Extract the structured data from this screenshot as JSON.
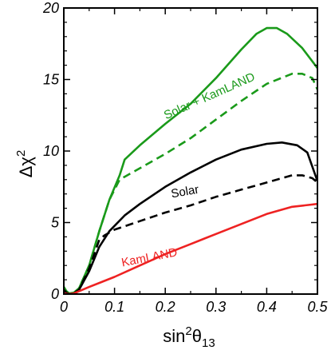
{
  "chart_data": {
    "type": "line",
    "xlabel": {
      "base": "sin",
      "sup": "2",
      "theta": "θ",
      "sub": "13"
    },
    "ylabel": {
      "base": "Δχ",
      "sup": "2"
    },
    "xlim": [
      0,
      0.5
    ],
    "ylim": [
      0,
      20
    ],
    "x_ticks": [
      "0",
      "0.1",
      "0.2",
      "0.3",
      "0.4",
      "0.5"
    ],
    "x_tick_values": [
      0,
      0.1,
      0.2,
      0.3,
      0.4,
      0.5
    ],
    "y_ticks": [
      "0",
      "5",
      "10",
      "15",
      "20"
    ],
    "y_tick_values": [
      0,
      5,
      10,
      15,
      20
    ],
    "grid": false,
    "legend": "none",
    "colors": {
      "green": "#1a9a1a",
      "black": "#000000",
      "red": "#ee2222"
    },
    "annotations": [
      {
        "text": "Solar + KamLAND",
        "color": "#1a9a1a",
        "x": 0.29,
        "y": 13.6,
        "angle": -24
      },
      {
        "text": "Solar",
        "color": "#000000",
        "x": 0.24,
        "y": 6.9,
        "angle": -10
      },
      {
        "text": "KamLAND",
        "color": "#ee2222",
        "x": 0.17,
        "y": 2.3,
        "angle": -11
      }
    ],
    "series": [
      {
        "color": "#1a9a1a",
        "dash": "solid",
        "x": [
          0,
          0.005,
          0.01,
          0.02,
          0.03,
          0.05,
          0.07,
          0.09,
          0.11,
          0.12,
          0.15,
          0.2,
          0.25,
          0.3,
          0.35,
          0.38,
          0.4,
          0.42,
          0.44,
          0.47,
          0.5
        ],
        "y": [
          0.5,
          0.2,
          0.05,
          0.1,
          0.4,
          2.0,
          4.4,
          6.6,
          8.3,
          9.4,
          10.4,
          11.9,
          13.3,
          15.1,
          17.1,
          18.2,
          18.6,
          18.6,
          18.2,
          17.2,
          15.8
        ]
      },
      {
        "color": "#1a9a1a",
        "dash": "dashed",
        "x": [
          0,
          0.005,
          0.01,
          0.02,
          0.03,
          0.05,
          0.07,
          0.09,
          0.11,
          0.12,
          0.15,
          0.2,
          0.25,
          0.3,
          0.35,
          0.4,
          0.45,
          0.47,
          0.49,
          0.5
        ],
        "y": [
          0.5,
          0.2,
          0.05,
          0.1,
          0.4,
          2.0,
          4.4,
          6.6,
          8.0,
          8.2,
          8.8,
          9.8,
          10.9,
          12.2,
          13.5,
          14.7,
          15.4,
          15.4,
          15.1,
          14.3
        ]
      },
      {
        "color": "#000000",
        "dash": "solid",
        "x": [
          0,
          0.005,
          0.01,
          0.02,
          0.03,
          0.05,
          0.07,
          0.09,
          0.12,
          0.15,
          0.2,
          0.25,
          0.3,
          0.35,
          0.4,
          0.43,
          0.46,
          0.48,
          0.5
        ],
        "y": [
          0.3,
          0.1,
          0.0,
          0.05,
          0.3,
          1.6,
          3.3,
          4.4,
          5.5,
          6.3,
          7.5,
          8.5,
          9.4,
          10.1,
          10.5,
          10.6,
          10.4,
          9.9,
          7.9
        ]
      },
      {
        "color": "#000000",
        "dash": "dashed",
        "x": [
          0,
          0.005,
          0.01,
          0.02,
          0.03,
          0.05,
          0.07,
          0.08,
          0.1,
          0.15,
          0.2,
          0.25,
          0.3,
          0.35,
          0.4,
          0.45,
          0.47,
          0.49,
          0.5
        ],
        "y": [
          0.3,
          0.1,
          0.0,
          0.05,
          0.3,
          1.8,
          3.8,
          4.1,
          4.5,
          5.1,
          5.7,
          6.2,
          6.8,
          7.3,
          7.8,
          8.3,
          8.3,
          8.1,
          7.8
        ]
      },
      {
        "color": "#ee2222",
        "dash": "solid",
        "x": [
          0,
          0.01,
          0.02,
          0.03,
          0.05,
          0.1,
          0.15,
          0.2,
          0.25,
          0.3,
          0.35,
          0.4,
          0.45,
          0.5
        ],
        "y": [
          0.05,
          0.0,
          0.05,
          0.2,
          0.5,
          1.2,
          2.0,
          2.8,
          3.5,
          4.2,
          4.9,
          5.6,
          6.1,
          6.3
        ]
      }
    ]
  }
}
